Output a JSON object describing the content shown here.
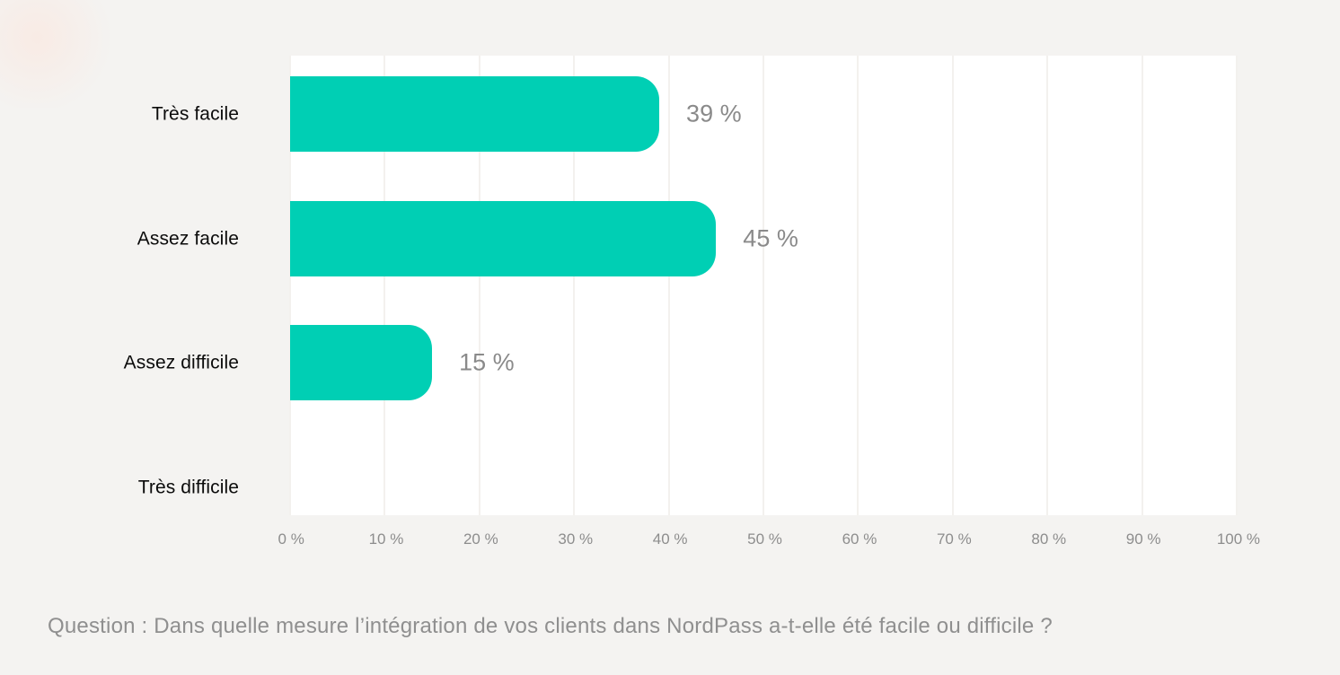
{
  "page": {
    "background": "#f4f3f1"
  },
  "chart_data": {
    "type": "bar",
    "orientation": "horizontal",
    "title": "",
    "categories": [
      "Très facile",
      "Assez facile",
      "Assez difficile",
      "Très difficile"
    ],
    "values": [
      39,
      45,
      15,
      0
    ],
    "value_labels": [
      "39 %",
      "45 %",
      "15 %",
      ""
    ],
    "xlabel": "",
    "ylabel": "",
    "xlim": [
      0,
      100
    ],
    "x_ticks": [
      "0 %",
      "10 %",
      "20 %",
      "30 %",
      "40 %",
      "50 %",
      "60 %",
      "70 %",
      "80 %",
      "90 %",
      "100 %"
    ],
    "grid": "vertical-gridlines-only",
    "legend": "none",
    "caption": "Question : Dans quelle mesure l’intégration de vos clients dans NordPass a-t-elle été facile ou difficile ?",
    "colors": {
      "bar": "#00cfb4",
      "plot_background": "#ffffff",
      "page_background": "#f4f3f1",
      "gridline": "#f3f1ee",
      "category_label": "#0b0b0b",
      "value_label": "#8a8a8a",
      "tick_label": "#8d8d8d",
      "question_text": "#8f8f8f"
    }
  }
}
